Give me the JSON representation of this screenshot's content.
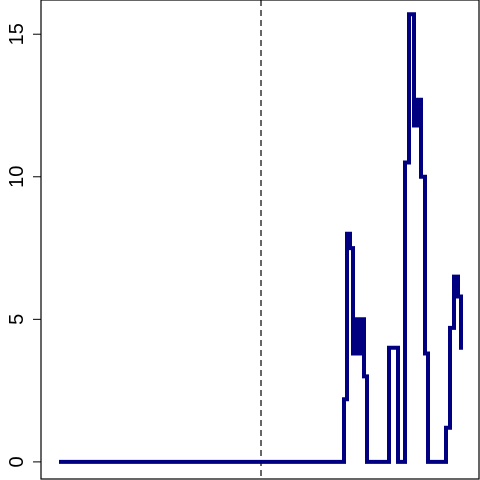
{
  "chart_data": {
    "type": "line",
    "title": "",
    "xlabel": "",
    "ylabel": "",
    "ylim": [
      -0.6,
      16.2
    ],
    "xlim": [
      0,
      480
    ],
    "y_ticks": [
      0,
      5,
      10,
      15
    ],
    "y_tick_labels": [
      "0",
      "5",
      "10",
      "15"
    ],
    "reference_line": {
      "x": 261,
      "style": "dashed",
      "color": "#000000"
    },
    "grid": false,
    "series": [
      {
        "color": "#000080",
        "x": [
          59,
          344,
          344,
          347,
          347,
          350,
          350,
          353,
          353,
          356,
          356,
          358,
          358,
          361,
          361,
          364,
          364,
          367,
          367,
          370,
          370,
          389,
          389,
          398,
          398,
          405,
          405,
          409,
          409,
          414,
          414,
          418,
          418,
          421,
          421,
          425,
          425,
          428,
          428,
          431,
          431,
          446,
          446,
          450,
          450,
          454,
          454,
          458,
          458,
          461,
          461,
          463
        ],
        "y": [
          0,
          0,
          2.2,
          2.2,
          8.0,
          8.0,
          7.5,
          7.5,
          3.8,
          3.8,
          5.0,
          5.0,
          3.8,
          3.8,
          5.0,
          5.0,
          3.0,
          3.0,
          0,
          0,
          0,
          0,
          4.0,
          4.0,
          0,
          0,
          10.5,
          10.5,
          15.7,
          15.7,
          11.8,
          11.8,
          12.7,
          12.7,
          10.0,
          10.0,
          3.8,
          3.8,
          0,
          0,
          0,
          0,
          1.2,
          1.2,
          4.7,
          4.7,
          6.5,
          6.5,
          5.8,
          5.8,
          4.0,
          4.0
        ]
      }
    ]
  }
}
